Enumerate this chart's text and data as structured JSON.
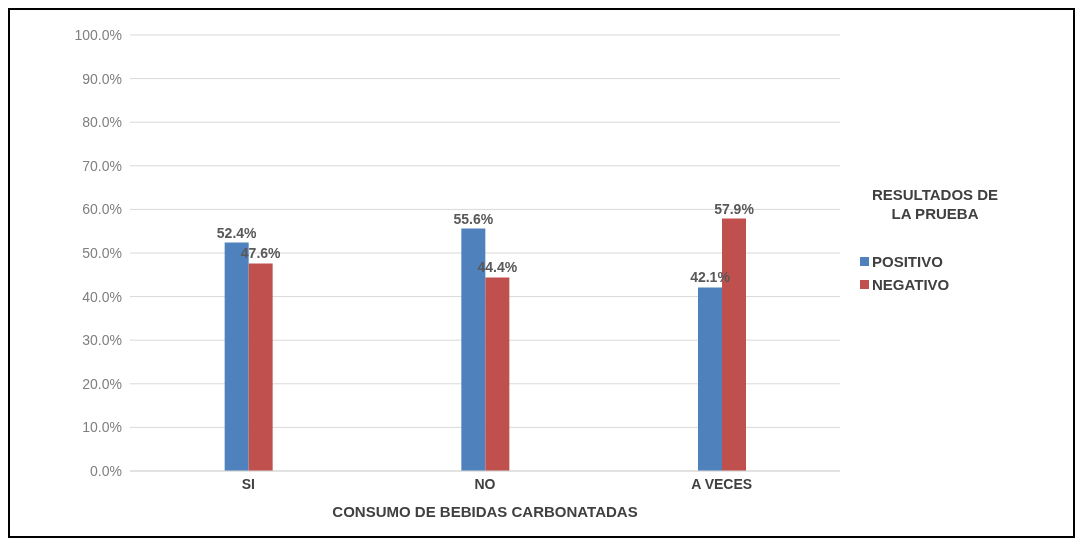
{
  "chart_data": {
    "type": "bar",
    "xlabel": "CONSUMO DE BEBIDAS CARBONATADAS",
    "legend_title": "RESULTADOS DE LA PRUEBA",
    "legend": "right",
    "grid": "y",
    "categories": [
      "SI",
      "NO",
      "A VECES"
    ],
    "series": [
      {
        "name": "POSITIVO",
        "color": "#4f81bd",
        "values": [
          52.4,
          55.6,
          42.1
        ],
        "value_labels": [
          "52.4%",
          "55.6%",
          "42.1%"
        ]
      },
      {
        "name": "NEGATIVO",
        "color": "#c0504d",
        "values": [
          47.6,
          44.4,
          57.9
        ],
        "value_labels": [
          "47.6%",
          "44.4%",
          "57.9%"
        ]
      }
    ],
    "ylim": [
      0,
      100
    ],
    "yticks": [
      {
        "value": 0,
        "label": "0.0%"
      },
      {
        "value": 10,
        "label": "10.0%"
      },
      {
        "value": 20,
        "label": "20.0%"
      },
      {
        "value": 30,
        "label": "30.0%"
      },
      {
        "value": 40,
        "label": "40.0%"
      },
      {
        "value": 50,
        "label": "50.0%"
      },
      {
        "value": 60,
        "label": "60.0%"
      },
      {
        "value": 70,
        "label": "70.0%"
      },
      {
        "value": 80,
        "label": "80.0%"
      },
      {
        "value": 90,
        "label": "90.0%"
      },
      {
        "value": 100,
        "label": "100.0%"
      }
    ]
  }
}
